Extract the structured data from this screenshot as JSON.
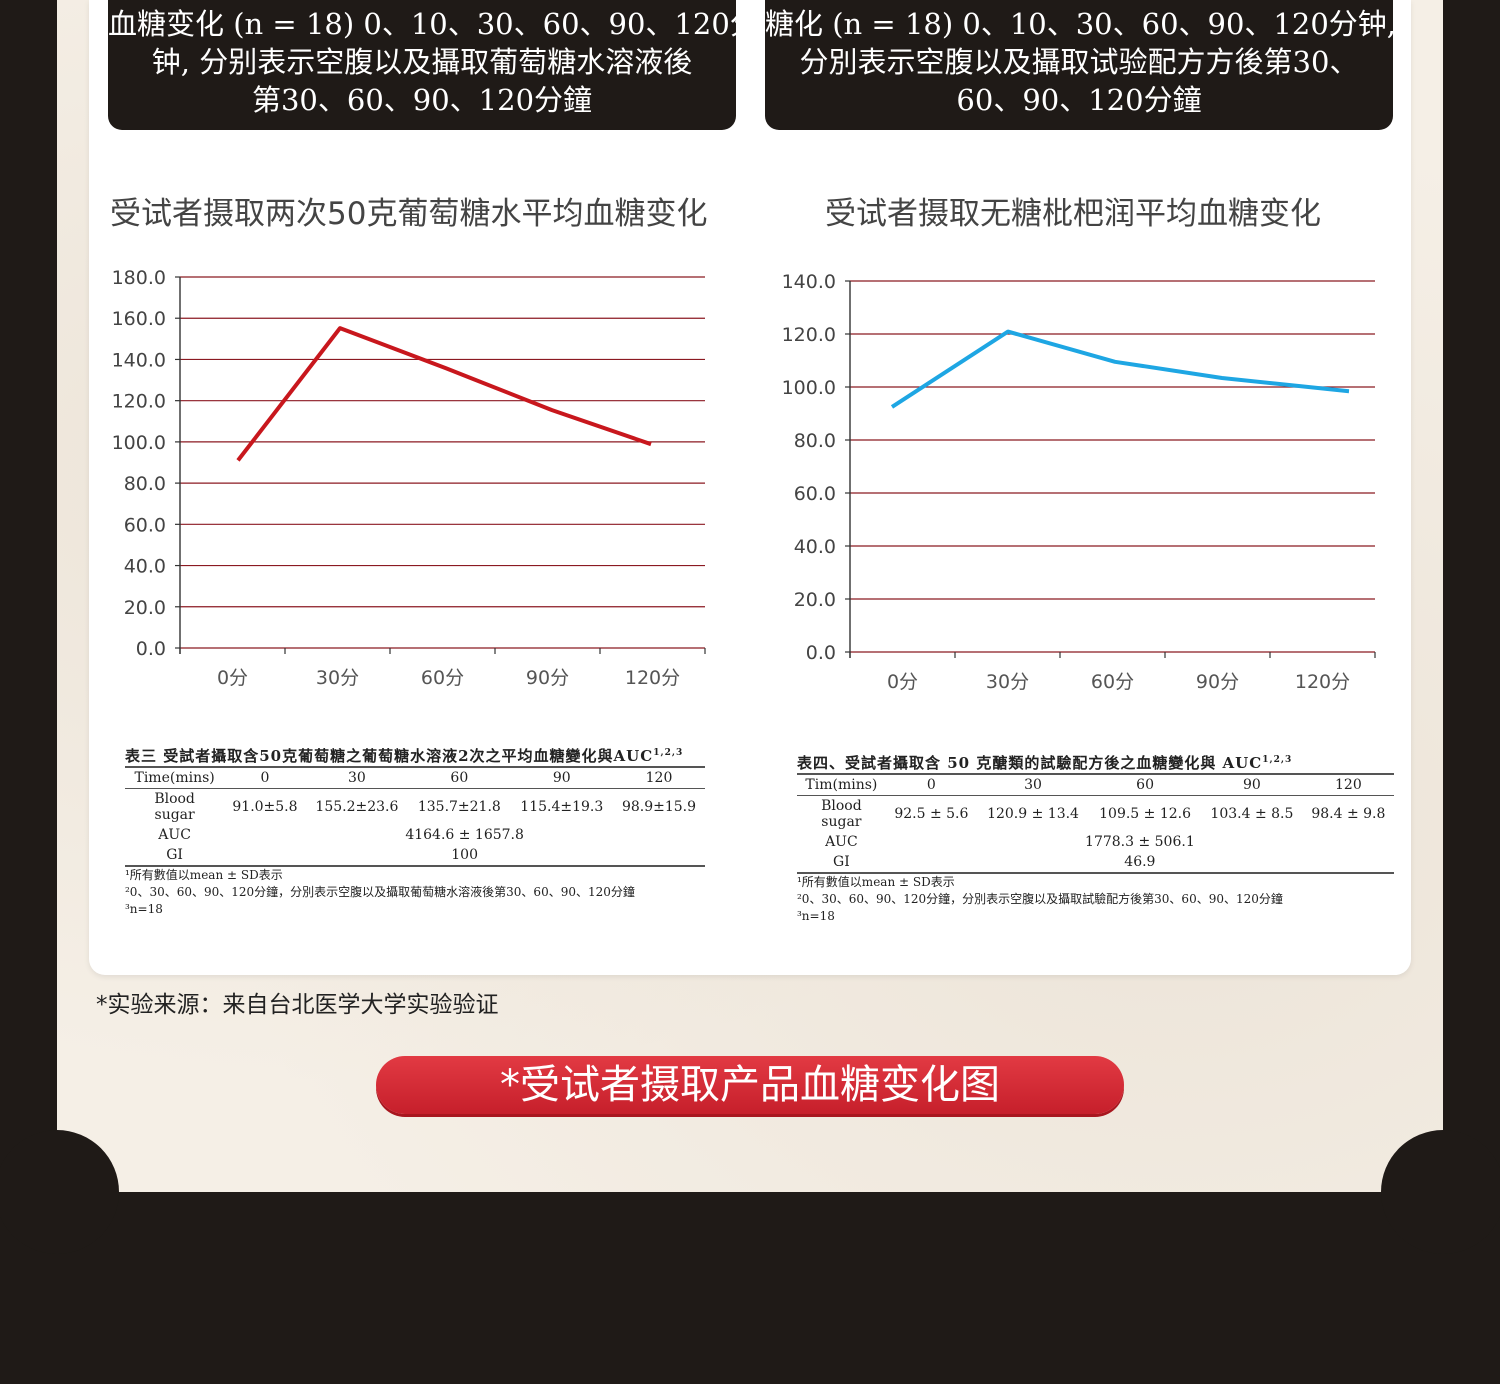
{
  "left_panel": {
    "header_lines": [
      "血糖变化 (n = 18) 0、10、30、60、90、120分",
      "钟, 分别表示空腹以及攝取葡萄糖水溶液後",
      "第30、60、90、120分鐘"
    ],
    "table": {
      "caption": "表三 受試者攝取含50克葡萄糖之葡萄糖水溶液2次之平均血糖變化與AUC",
      "caption_sup": "1,2,3",
      "header": [
        "Time(mins)",
        "0",
        "30",
        "60",
        "90",
        "120"
      ],
      "blood_sugar_label": [
        "Blood",
        "sugar"
      ],
      "blood_sugar": [
        "91.0±5.8",
        "155.2±23.6",
        "135.7±21.8",
        "115.4±19.3",
        "98.9±15.9"
      ],
      "auc_label": "AUC",
      "auc": "4164.6 ± 1657.8",
      "gi_label": "GI",
      "gi": "100",
      "footnotes": [
        "¹所有數值以mean ± SD表示",
        "²0、30、60、90、120分鐘，分別表示空腹以及攝取葡萄糖水溶液後第30、60、90、120分鐘",
        "³n=18"
      ]
    }
  },
  "right_panel": {
    "header_lines": [
      "糖化 (n = 18) 0、10、30、60、90、120分钟,",
      "分別表示空腹以及攝取试验配方方後第30、",
      "60、90、120分鐘"
    ],
    "table": {
      "caption": "表四、受試者攝取含 50 克醣類的試驗配方後之血糖變化與 AUC",
      "caption_sup": "1,2,3",
      "header": [
        "Tim(mins)",
        "0",
        "30",
        "60",
        "90",
        "120"
      ],
      "blood_sugar_label": [
        "Blood",
        "sugar"
      ],
      "blood_sugar": [
        "92.5 ± 5.6",
        "120.9 ± 13.4",
        "109.5 ± 12.6",
        "103.4 ± 8.5",
        "98.4 ± 9.8"
      ],
      "auc_label": "AUC",
      "auc": "1778.3 ± 506.1",
      "gi_label": "GI",
      "gi": "46.9",
      "footnotes": [
        "¹所有數值以mean ± SD表示",
        "²0、30、60、90、120分鐘，分別表示空腹以及攝取試驗配方後第30、60、90、120分鐘",
        "³n=18"
      ]
    }
  },
  "chart_data": [
    {
      "type": "line",
      "title": "受试者摄取两次50克葡萄糖水平均血糖变化",
      "categories": [
        "0分",
        "30分",
        "60分",
        "90分",
        "120分"
      ],
      "series": [
        {
          "values": [
            91.0,
            155.2,
            135.7,
            115.4,
            98.9
          ],
          "color": "#c8171d"
        }
      ],
      "ylim": [
        0,
        180
      ],
      "yticks": [
        "0.0",
        "20.0",
        "40.0",
        "60.0",
        "80.0",
        "100.0",
        "120.0",
        "140.0",
        "160.0",
        "180.0"
      ],
      "ystep": 20,
      "grid_color": "#8b1a22",
      "grid": true
    },
    {
      "type": "line",
      "title": "受试者摄取无糖枇杷润平均血糖变化",
      "categories": [
        "0分",
        "30分",
        "60分",
        "90分",
        "120分"
      ],
      "series": [
        {
          "values": [
            92.5,
            120.9,
            109.5,
            103.4,
            98.4
          ],
          "color": "#1ea6e3"
        }
      ],
      "ylim": [
        0,
        140
      ],
      "yticks": [
        "0.0",
        "20.0",
        "40.0",
        "60.0",
        "80.0",
        "100.0",
        "120.0",
        "140.0"
      ],
      "ystep": 20,
      "grid_color": "#8b1a22",
      "grid": true
    }
  ],
  "source_note": "*实验来源：来自台北医学大学实验验证",
  "banner_label": "*受试者摄取产品血糖变化图"
}
